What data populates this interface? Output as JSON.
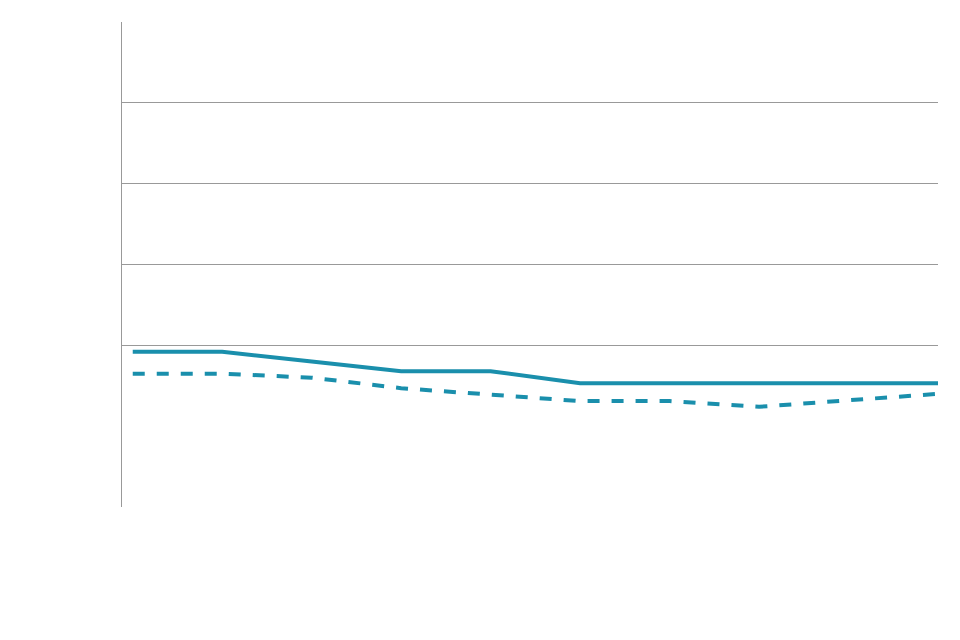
{
  "chart_data": {
    "type": "line",
    "categories": [
      null,
      null,
      null,
      null,
      null,
      null,
      null,
      null,
      null,
      null
    ],
    "series": [
      {
        "color": "#1a8fac",
        "line_style": "solid",
        "values": [
          19.2,
          19.2,
          18.0,
          16.8,
          16.8,
          15.3,
          15.3,
          15.3,
          15.3,
          15.3
        ]
      },
      {
        "color": "#1a8fac",
        "line_style": "dashed",
        "values": [
          16.5,
          16.5,
          16.0,
          14.7,
          13.9,
          13.1,
          13.1,
          12.4,
          13.2,
          14.0
        ]
      }
    ],
    "ylim": [
      0,
      60
    ],
    "yticks": [
      20,
      30,
      40,
      50,
      60
    ],
    "grid": true,
    "tick_labels": false
  }
}
